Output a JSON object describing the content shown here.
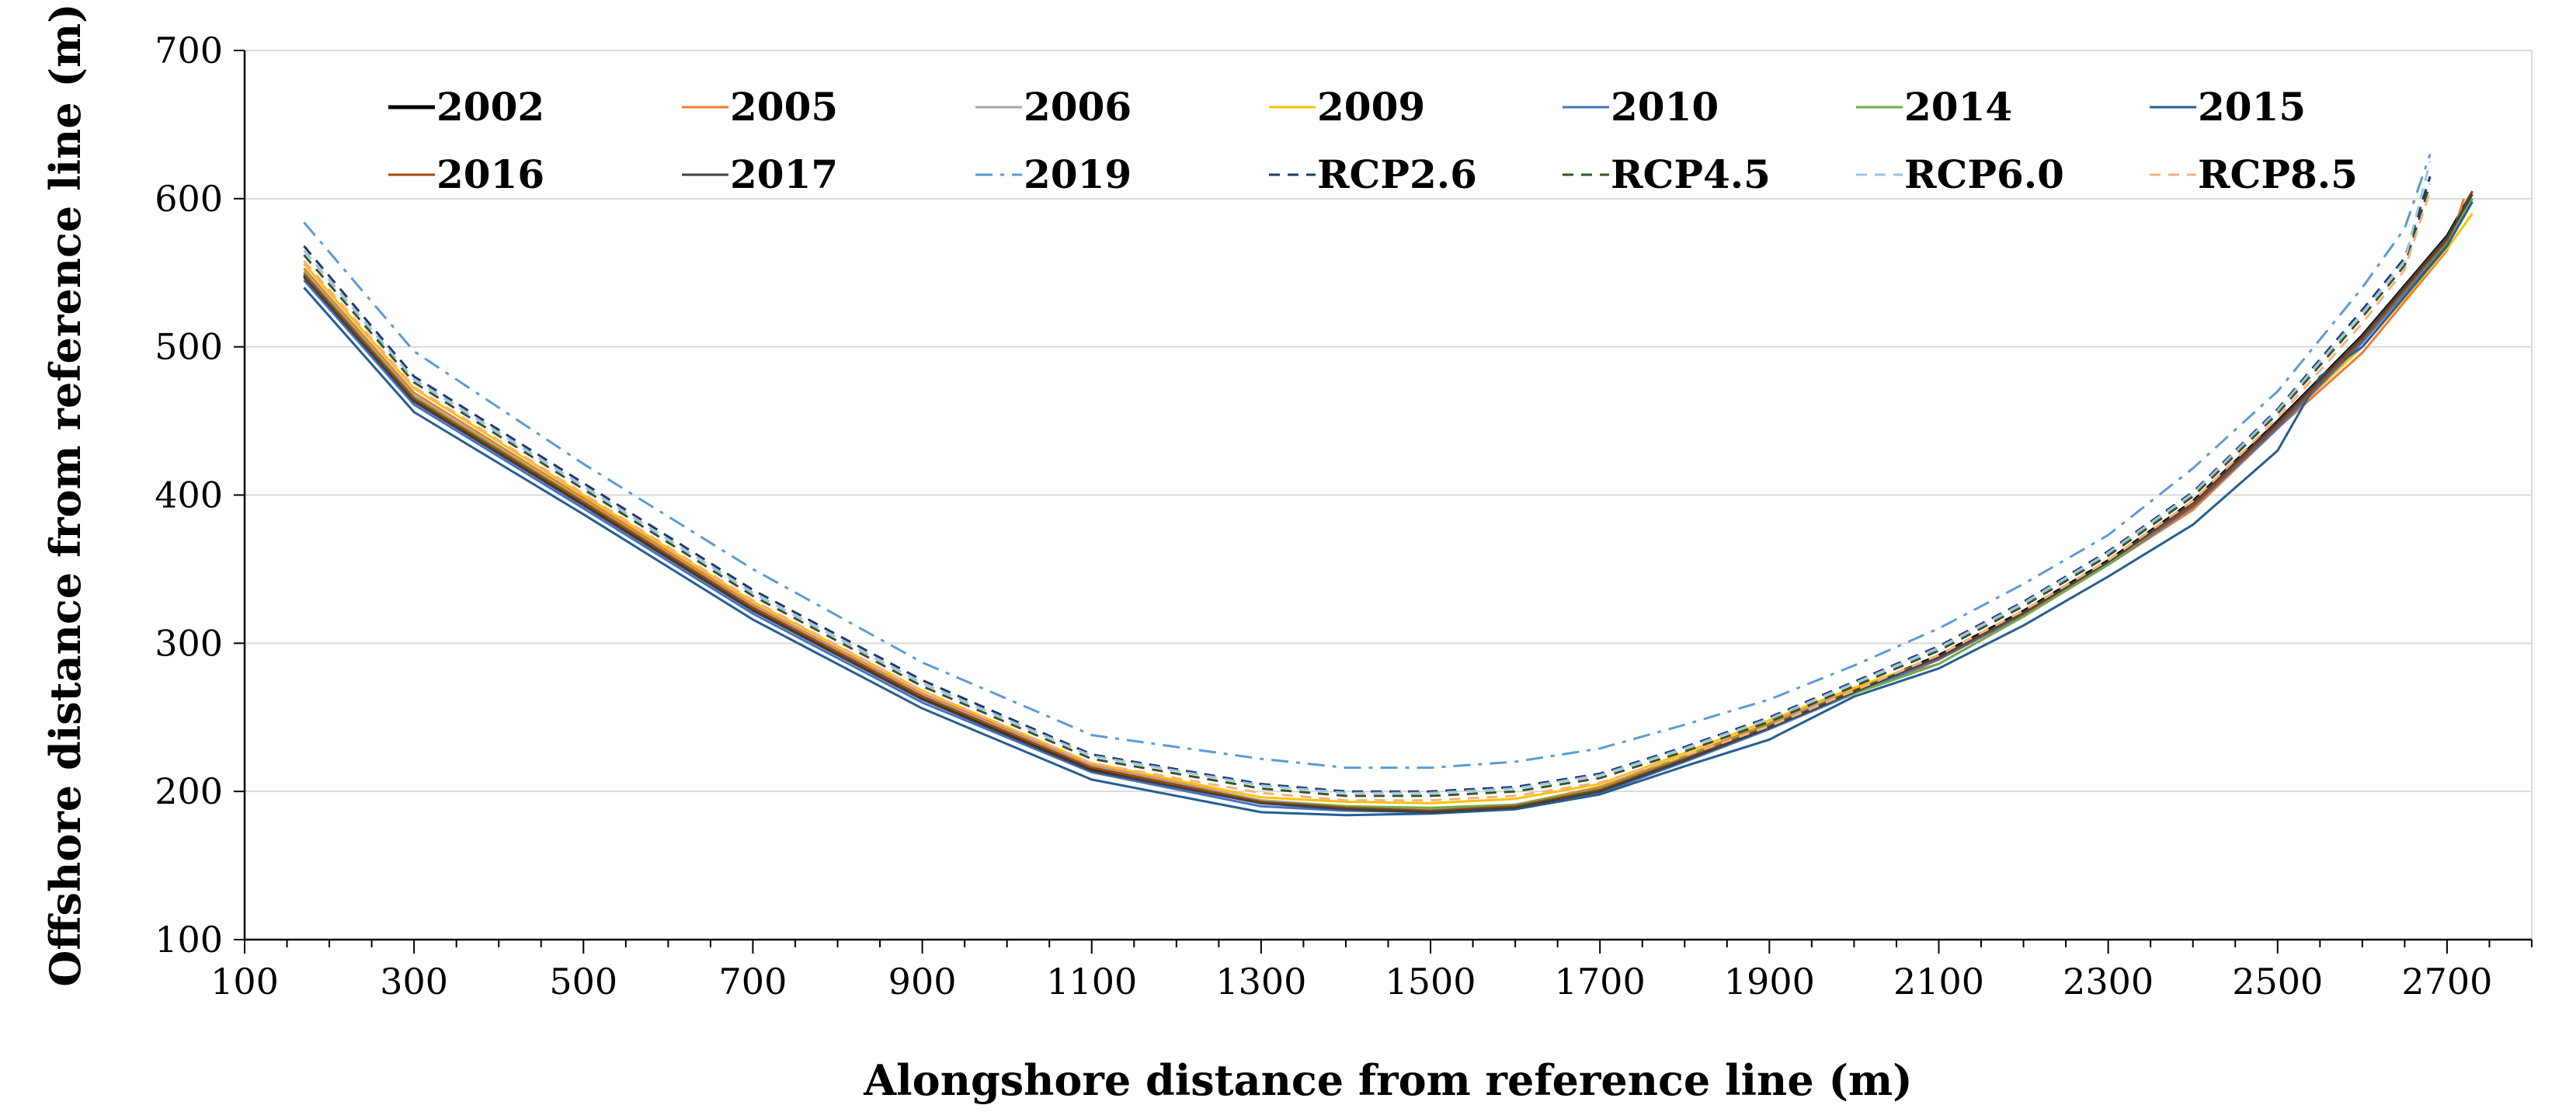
{
  "chart_data": {
    "type": "line",
    "title": "",
    "xlabel": "Alongshore distance from reference line (m)",
    "ylabel": "Offshore distance from reference line  (m)",
    "xlim": [
      100,
      2800
    ],
    "ylim": [
      100,
      700
    ],
    "xticks": [
      100,
      300,
      500,
      700,
      900,
      1100,
      1300,
      1500,
      1700,
      1900,
      2100,
      2300,
      2500,
      2700
    ],
    "yticks": [
      100,
      200,
      300,
      400,
      500,
      600,
      700
    ],
    "grid": "horizontal",
    "legend_position": "top, inside plot area, two rows",
    "series": [
      {
        "name": "2002",
        "color": "#000000",
        "dash": "solid",
        "x": [
          170,
          300,
          500,
          700,
          900,
          1100,
          1300,
          1400,
          1500,
          1600,
          1700,
          1800,
          1900,
          2000,
          2100,
          2200,
          2300,
          2400,
          2500,
          2600,
          2700,
          2730
        ],
        "y": [
          548,
          464,
          394,
          323,
          263,
          215,
          193,
          189,
          186,
          189,
          201,
          222,
          244,
          268,
          292,
          322,
          356,
          396,
          450,
          508,
          575,
          605
        ]
      },
      {
        "name": "2005",
        "color": "#ed7d31",
        "dash": "solid",
        "x": [
          170,
          300,
          500,
          700,
          900,
          1100,
          1300,
          1400,
          1500,
          1600,
          1700,
          1800,
          1900,
          2000,
          2100,
          2200,
          2300,
          2400,
          2500,
          2600,
          2700,
          2720
        ],
        "y": [
          553,
          469,
          398,
          326,
          266,
          218,
          194,
          190,
          188,
          191,
          203,
          224,
          246,
          270,
          286,
          318,
          353,
          390,
          445,
          496,
          565,
          600
        ]
      },
      {
        "name": "2006",
        "color": "#a5a5a5",
        "dash": "solid",
        "x": [
          170,
          300,
          500,
          700,
          900,
          1100,
          1300,
          1400,
          1500,
          1600,
          1700,
          1800,
          1900,
          2000,
          2100,
          2200,
          2300,
          2400,
          2500,
          2600,
          2700,
          2730
        ],
        "y": [
          551,
          467,
          396,
          325,
          265,
          217,
          194,
          190,
          188,
          190,
          202,
          223,
          245,
          269,
          290,
          320,
          354,
          393,
          447,
          504,
          572,
          600
        ]
      },
      {
        "name": "2009",
        "color": "#ffc000",
        "dash": "solid",
        "x": [
          170,
          300,
          500,
          700,
          900,
          1100,
          1300,
          1400,
          1500,
          1600,
          1700,
          1800,
          1900,
          2000,
          2100,
          2200,
          2300,
          2400,
          2500,
          2600,
          2700,
          2730
        ],
        "y": [
          556,
          472,
          400,
          328,
          268,
          219,
          196,
          193,
          192,
          195,
          205,
          226,
          248,
          270,
          290,
          320,
          354,
          392,
          446,
          500,
          566,
          590
        ]
      },
      {
        "name": "2010",
        "color": "#4472c4",
        "dash": "solid",
        "x": [
          170,
          300,
          500,
          700,
          900,
          1100,
          1300,
          1400,
          1500,
          1600,
          1700,
          1800,
          1900,
          2000,
          2100,
          2200,
          2300,
          2400,
          2500,
          2600,
          2700,
          2730
        ],
        "y": [
          545,
          461,
          391,
          320,
          260,
          213,
          190,
          187,
          186,
          188,
          199,
          220,
          242,
          266,
          289,
          319,
          353,
          392,
          445,
          503,
          570,
          600
        ]
      },
      {
        "name": "2014",
        "color": "#70ad47",
        "dash": "solid",
        "x": [
          170,
          300,
          500,
          700,
          900,
          1100,
          1300,
          1400,
          1500,
          1600,
          1700,
          1800,
          1900,
          2000,
          2100,
          2200,
          2300,
          2400,
          2500,
          2600,
          2700,
          2730
        ],
        "y": [
          550,
          466,
          396,
          324,
          264,
          216,
          193,
          190,
          189,
          191,
          202,
          223,
          245,
          266,
          286,
          318,
          353,
          394,
          448,
          505,
          571,
          600
        ]
      },
      {
        "name": "2015",
        "color": "#255e91",
        "dash": "solid",
        "x": [
          170,
          300,
          500,
          700,
          900,
          1100,
          1300,
          1400,
          1500,
          1600,
          1700,
          1800,
          1900,
          2000,
          2100,
          2200,
          2300,
          2400,
          2500,
          2550,
          2600,
          2700,
          2730
        ],
        "y": [
          540,
          456,
          387,
          316,
          256,
          208,
          186,
          184,
          185,
          188,
          198,
          217,
          235,
          264,
          283,
          312,
          345,
          380,
          430,
          480,
          500,
          568,
          598
        ]
      },
      {
        "name": "2016",
        "color": "#9e480e",
        "dash": "solid",
        "x": [
          170,
          300,
          500,
          700,
          900,
          1100,
          1300,
          1400,
          1500,
          1600,
          1700,
          1800,
          1900,
          2000,
          2100,
          2200,
          2300,
          2400,
          2500,
          2600,
          2700,
          2730
        ],
        "y": [
          549,
          465,
          395,
          324,
          264,
          216,
          193,
          189,
          187,
          190,
          201,
          222,
          244,
          268,
          290,
          320,
          355,
          393,
          447,
          505,
          572,
          605
        ]
      },
      {
        "name": "2017",
        "color": "#404040",
        "dash": "solid",
        "x": [
          170,
          300,
          500,
          700,
          900,
          1100,
          1300,
          1400,
          1500,
          1600,
          1700,
          1800,
          1900,
          2000,
          2100,
          2200,
          2300,
          2400,
          2500,
          2600,
          2700,
          2730
        ],
        "y": [
          547,
          463,
          393,
          322,
          262,
          214,
          192,
          188,
          186,
          189,
          200,
          221,
          243,
          267,
          291,
          321,
          355,
          395,
          449,
          507,
          574,
          603
        ]
      },
      {
        "name": "2019",
        "color": "#5b9bd5",
        "dash": "dashdot",
        "x": [
          170,
          300,
          500,
          700,
          900,
          1100,
          1300,
          1400,
          1500,
          1600,
          1700,
          1800,
          1900,
          2000,
          2100,
          2200,
          2300,
          2400,
          2500,
          2600,
          2650,
          2680
        ],
        "y": [
          584,
          497,
          421,
          350,
          287,
          238,
          222,
          216,
          216,
          220,
          229,
          245,
          262,
          285,
          310,
          340,
          373,
          418,
          470,
          540,
          580,
          630
        ]
      },
      {
        "name": "RCP2.6",
        "color": "#1f3864",
        "dash": "dash",
        "x": [
          170,
          300,
          500,
          700,
          900,
          1100,
          1300,
          1400,
          1500,
          1600,
          1700,
          1800,
          1900,
          2000,
          2100,
          2200,
          2300,
          2400,
          2500,
          2600,
          2650,
          2680
        ],
        "y": [
          568,
          480,
          408,
          336,
          275,
          225,
          205,
          200,
          200,
          203,
          212,
          230,
          250,
          274,
          298,
          328,
          362,
          402,
          458,
          525,
          560,
          615
        ]
      },
      {
        "name": "RCP4.5",
        "color": "#375623",
        "dash": "dash",
        "x": [
          170,
          300,
          500,
          700,
          900,
          1100,
          1300,
          1400,
          1500,
          1600,
          1700,
          1800,
          1900,
          2000,
          2100,
          2200,
          2300,
          2400,
          2500,
          2600,
          2650,
          2680
        ],
        "y": [
          562,
          476,
          404,
          332,
          271,
          222,
          202,
          197,
          197,
          200,
          209,
          227,
          247,
          271,
          295,
          325,
          359,
          399,
          455,
          520,
          555,
          610
        ]
      },
      {
        "name": "RCP6.0",
        "color": "#9dc3e6",
        "dash": "dash",
        "x": [
          170,
          300,
          500,
          700,
          900,
          1100,
          1300,
          1400,
          1500,
          1600,
          1700,
          1800,
          1900,
          2000,
          2100,
          2200,
          2300,
          2400,
          2500,
          2600,
          2650,
          2680
        ],
        "y": [
          565,
          478,
          406,
          334,
          273,
          224,
          204,
          199,
          199,
          202,
          211,
          229,
          249,
          273,
          297,
          327,
          361,
          401,
          457,
          523,
          558,
          625
        ]
      },
      {
        "name": "RCP8.5",
        "color": "#f4b183",
        "dash": "dash",
        "x": [
          170,
          300,
          500,
          700,
          900,
          1100,
          1300,
          1400,
          1500,
          1600,
          1700,
          1800,
          1900,
          2000,
          2100,
          2200,
          2300,
          2400,
          2500,
          2600,
          2650,
          2680
        ],
        "y": [
          558,
          473,
          401,
          329,
          268,
          219,
          199,
          194,
          194,
          197,
          206,
          224,
          244,
          268,
          292,
          322,
          356,
          396,
          452,
          516,
          552,
          605
        ]
      }
    ]
  }
}
